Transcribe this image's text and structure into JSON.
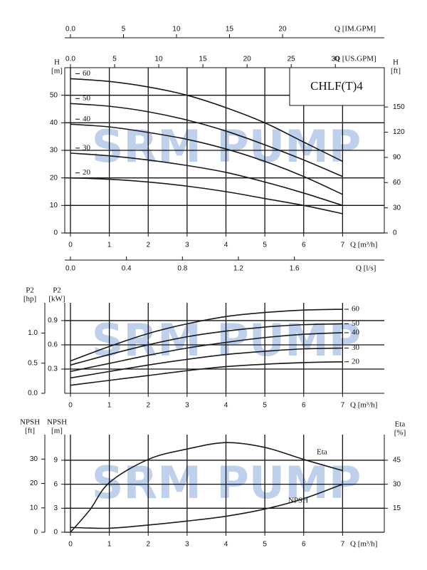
{
  "chart_data": [
    {
      "type": "line",
      "title": "CHLF(T)4",
      "watermark": "SRM PUMP",
      "x": [
        0,
        1,
        2,
        3,
        4,
        5,
        6,
        7
      ],
      "xlabel": "Q [m³/h]",
      "xlim": [
        0,
        8
      ],
      "xticks": [
        0,
        1,
        2,
        3,
        4,
        5,
        6,
        7
      ],
      "ylabel": "H",
      "yunit": "[m]",
      "ylim": [
        0,
        60
      ],
      "yticks": [
        0,
        10,
        20,
        30,
        40,
        50
      ],
      "y2label": "H",
      "y2unit": "[ft]",
      "y2lim": [
        0,
        196.85
      ],
      "y2ticks": [
        0,
        30,
        60,
        90,
        120,
        150
      ],
      "y2side": "right",
      "grid": true,
      "extra_x_axes": [
        {
          "label": "Q [IM.GPM]",
          "position": "top",
          "lim": [
            0,
            29.33
          ],
          "ticks": [
            {
              "value": 0,
              "label": "0.0"
            },
            5,
            10,
            15,
            20
          ]
        },
        {
          "label": "Q [US.GPM]",
          "position": "top",
          "lim": [
            0,
            35.22
          ],
          "ticks": [
            {
              "value": 0,
              "label": "0.0"
            },
            5,
            10,
            15,
            20,
            25,
            30
          ]
        },
        {
          "label": "Q [l/s]",
          "position": "bottom",
          "lim": [
            0,
            2.222
          ],
          "ticks": [
            {
              "value": 0,
              "label": "0.0"
            },
            0.4,
            0.8,
            1.2,
            1.6
          ]
        }
      ],
      "series": [
        {
          "name": "60",
          "color": "#1a1a1a",
          "values": [
            56,
            55,
            53,
            50,
            45.5,
            40,
            33,
            26
          ]
        },
        {
          "name": "50",
          "color": "#1a1a1a",
          "values": [
            47,
            46,
            44,
            41,
            37,
            32,
            26.5,
            20.5
          ]
        },
        {
          "name": "40",
          "color": "#1a1a1a",
          "values": [
            39.5,
            38.5,
            36.5,
            34,
            30.5,
            26,
            20.5,
            14
          ]
        },
        {
          "name": "30",
          "color": "#1a1a1a",
          "values": [
            29,
            28,
            26.5,
            24.5,
            22,
            18.5,
            14.5,
            10
          ]
        },
        {
          "name": "20",
          "color": "#1a1a1a",
          "values": [
            20,
            19.5,
            18.5,
            17,
            15,
            12.5,
            10,
            7
          ]
        }
      ]
    },
    {
      "type": "line",
      "watermark": "SRM PUMP",
      "x": [
        0,
        1,
        2,
        3,
        4,
        5,
        6,
        7
      ],
      "xlabel": "Q [m³/h]",
      "xlim": [
        0,
        8
      ],
      "xticks": [
        0,
        1,
        2,
        3,
        4,
        5,
        6,
        7
      ],
      "ylabel": "P2",
      "yunit": "[kW]",
      "ylim": [
        0,
        1.12
      ],
      "yticks": [
        0.3,
        0.6,
        0.9
      ],
      "y2label": "P2",
      "y2unit": "[hp]",
      "y2lim": [
        0,
        1.502
      ],
      "y2ticks": [
        {
          "value": 0,
          "label": "0.0"
        },
        0.5,
        {
          "value": 1,
          "label": "1.0"
        }
      ],
      "y2side": "left",
      "grid": true,
      "series": [
        {
          "name": "60",
          "color": "#1a1a1a",
          "values": [
            0.4,
            0.58,
            0.74,
            0.86,
            0.95,
            1.0,
            1.03,
            1.04
          ]
        },
        {
          "name": "50",
          "color": "#1a1a1a",
          "values": [
            0.35,
            0.48,
            0.6,
            0.7,
            0.77,
            0.82,
            0.85,
            0.86
          ]
        },
        {
          "name": "40",
          "color": "#1a1a1a",
          "values": [
            0.27,
            0.37,
            0.47,
            0.56,
            0.63,
            0.69,
            0.73,
            0.75
          ]
        },
        {
          "name": "30",
          "color": "#1a1a1a",
          "values": [
            0.19,
            0.27,
            0.35,
            0.42,
            0.48,
            0.52,
            0.55,
            0.56
          ]
        },
        {
          "name": "20",
          "color": "#1a1a1a",
          "values": [
            0.1,
            0.16,
            0.22,
            0.28,
            0.33,
            0.36,
            0.38,
            0.39
          ]
        }
      ]
    },
    {
      "type": "line",
      "watermark": "SRM PUMP",
      "xlabel": "Q [m³/h]",
      "xlim": [
        0,
        8
      ],
      "xticks": [
        0,
        1,
        2,
        3,
        4,
        5,
        6,
        7
      ],
      "ylabel": "NPSH",
      "yunit": "[m]",
      "ylim": [
        0,
        12.2
      ],
      "yticks": [
        0,
        3,
        6,
        9
      ],
      "y2label": "NPSH",
      "y2unit": "[ft]",
      "y2lim": [
        0,
        40.03
      ],
      "y2ticks": [
        0,
        10,
        20,
        30
      ],
      "y2side": "left",
      "y3label": "Eta",
      "y3unit": "[%]",
      "y3lim": [
        0,
        61
      ],
      "y3ticks": [
        15,
        30,
        45
      ],
      "y3side": "right",
      "grid": true,
      "series": [
        {
          "name": "Eta",
          "color": "#1a1a1a",
          "axis": "y3",
          "x": [
            0,
            0.5,
            1,
            2,
            3,
            4,
            5,
            6,
            7
          ],
          "values": [
            0,
            14,
            31,
            45.5,
            52,
            56,
            53,
            45.5,
            38.5
          ]
        },
        {
          "name": "NPSH",
          "color": "#1a1a1a",
          "x": [
            0,
            1,
            2,
            3,
            4,
            5,
            6,
            7
          ],
          "values": [
            0.6,
            0.5,
            0.9,
            1.4,
            2.0,
            2.9,
            4.2,
            6.0
          ]
        }
      ]
    }
  ]
}
